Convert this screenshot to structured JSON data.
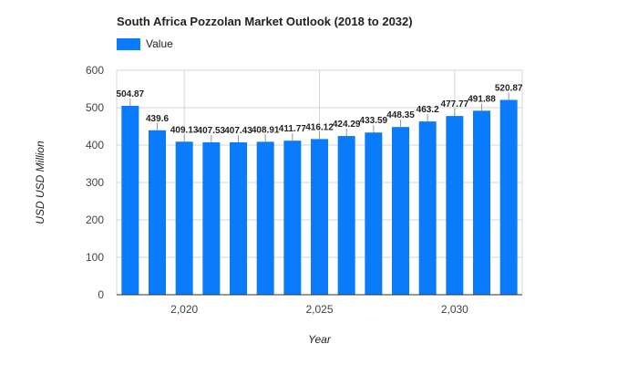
{
  "colors": {
    "bar": "#0a7cfb",
    "grid": "#d6d6d6",
    "axis": "#333333"
  },
  "chart_data": {
    "type": "bar",
    "title": "South Africa Pozzolan Market Outlook (2018 to 2032)",
    "xlabel": "Year",
    "ylabel": "USD USD Million",
    "legend": {
      "position": "top-left",
      "entries": [
        "Value"
      ]
    },
    "grid": true,
    "ylim": [
      0,
      600
    ],
    "yticks": [
      "0",
      "100",
      "200",
      "300",
      "400",
      "500",
      "600"
    ],
    "xticks": [
      {
        "x": 2020,
        "label": "2,020"
      },
      {
        "x": 2025,
        "label": "2,025"
      },
      {
        "x": 2030,
        "label": "2,030"
      }
    ],
    "series": [
      {
        "name": "Value",
        "x": [
          2018,
          2019,
          2020,
          2021,
          2022,
          2023,
          2024,
          2025,
          2026,
          2027,
          2028,
          2029,
          2030,
          2031,
          2032
        ],
        "values": [
          504.87,
          439.6,
          409.13,
          407.53,
          407.43,
          408.91,
          411.77,
          416.12,
          424.29,
          433.59,
          448.35,
          463.2,
          477.77,
          491.88,
          520.87
        ],
        "labels": [
          "504.87",
          "439.6",
          "409.13",
          "407.53",
          "407.43",
          "408.91",
          "411.77",
          "416.12",
          "424.29",
          "433.59",
          "448.35",
          "463.2",
          "477.77",
          "491.88",
          "520.87"
        ]
      }
    ]
  }
}
